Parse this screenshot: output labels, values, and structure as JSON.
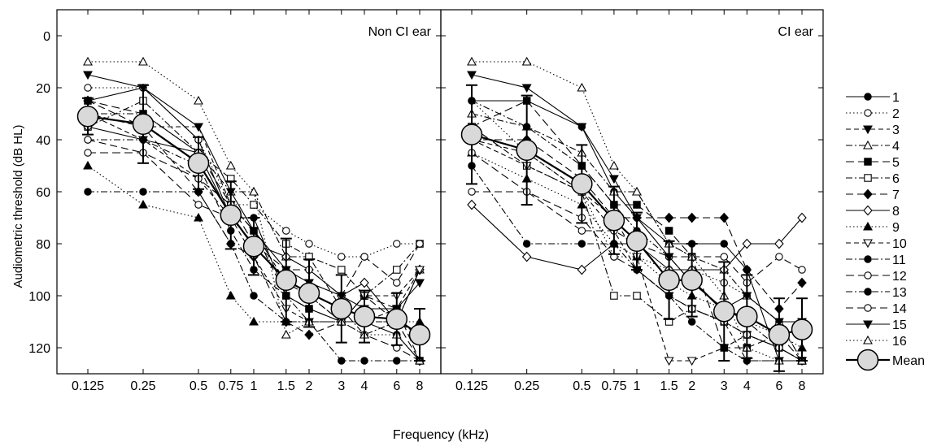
{
  "chart_data": {
    "type": "line",
    "xlabel": "Frequency (kHz)",
    "ylabel": "Audiometric threshold (dB HL)",
    "x": [
      0.125,
      0.25,
      0.5,
      0.75,
      1,
      1.5,
      2,
      3,
      4,
      6,
      8
    ],
    "x_tick_labels": [
      "0.125",
      "0.25",
      "0.5",
      "0.75",
      "1",
      "1.5",
      "2",
      "3",
      "4",
      "6",
      "8"
    ],
    "x_scale": "log",
    "y_ticks": [
      0,
      20,
      40,
      60,
      80,
      100,
      120
    ],
    "ylim": [
      -10,
      130
    ],
    "y_inverted": true,
    "grid": false,
    "legend_position": "right",
    "panels": [
      {
        "title": "Non CI ear",
        "series": [
          {
            "name": "1",
            "values": [
              25,
              20,
              40,
              70,
              70,
              100,
              105,
              110,
              110,
              115,
              125
            ]
          },
          {
            "name": "2",
            "values": [
              20,
              20,
              40,
              65,
              65,
              75,
              80,
              85,
              85,
              80,
              80
            ]
          },
          {
            "name": "3",
            "values": [
              30,
              35,
              35,
              65,
              75,
              95,
              100,
              110,
              110,
              105,
              90
            ]
          },
          {
            "name": "4",
            "values": [
              30,
              30,
              45,
              60,
              60,
              85,
              85,
              105,
              115,
              110,
              90
            ]
          },
          {
            "name": "5",
            "values": [
              25,
              30,
              45,
              65,
              75,
              100,
              105,
              110,
              100,
              105,
              125
            ]
          },
          {
            "name": "6",
            "values": [
              35,
              25,
              45,
              55,
              65,
              80,
              85,
              90,
              100,
              90,
              80
            ]
          },
          {
            "name": "7",
            "values": [
              25,
              35,
              60,
              80,
              85,
              110,
              115,
              110,
              100,
              110,
              125
            ]
          },
          {
            "name": "8",
            "values": [
              35,
              40,
              45,
              70,
              80,
              85,
              90,
              100,
              95,
              110,
              90
            ]
          },
          {
            "name": "9",
            "values": [
              50,
              65,
              70,
              100,
              110,
              110,
              110,
              110,
              110,
              110,
              110
            ]
          },
          {
            "name": "10",
            "values": [
              30,
              40,
              55,
              70,
              85,
              105,
              110,
              110,
              100,
              100,
              90
            ]
          },
          {
            "name": "11",
            "values": [
              40,
              40,
              50,
              75,
              90,
              100,
              110,
              110,
              110,
              110,
              115
            ]
          },
          {
            "name": "12",
            "values": [
              45,
              45,
              55,
              65,
              80,
              95,
              100,
              110,
              115,
              120,
              125
            ]
          },
          {
            "name": "13",
            "values": [
              60,
              60,
              60,
              80,
              100,
              110,
              110,
              125,
              125,
              125,
              125
            ]
          },
          {
            "name": "14",
            "values": [
              40,
              45,
              65,
              70,
              80,
              90,
              90,
              100,
              85,
              95,
              80
            ]
          },
          {
            "name": "15",
            "values": [
              15,
              20,
              35,
              60,
              75,
              90,
              95,
              100,
              105,
              105,
              95
            ]
          },
          {
            "name": "16",
            "values": [
              10,
              10,
              25,
              50,
              60,
              115,
              110,
              110,
              115,
              115,
              125
            ]
          }
        ],
        "mean": [
          31,
          34,
          49,
          69,
          81,
          94,
          99,
          105,
          108,
          109,
          115
        ],
        "mean_error": [
          7,
          15,
          10,
          13,
          11,
          16,
          13,
          13,
          10,
          10,
          10
        ]
      },
      {
        "title": "CI ear",
        "series": [
          {
            "name": "1",
            "values": [
              25,
              25,
              35,
              60,
              70,
              80,
              80,
              80,
              90,
              125,
              125
            ]
          },
          {
            "name": "2",
            "values": [
              25,
              45,
              60,
              85,
              85,
              90,
              90,
              95,
              100,
              110,
              125
            ]
          },
          {
            "name": "3",
            "values": [
              40,
              45,
              60,
              75,
              90,
              100,
              105,
              110,
              125,
              125,
              125
            ]
          },
          {
            "name": "4",
            "values": [
              30,
              35,
              45,
              60,
              60,
              80,
              85,
              90,
              100,
              110,
              125
            ]
          },
          {
            "name": "5",
            "values": [
              35,
              25,
              50,
              65,
              65,
              75,
              85,
              120,
              120,
              115,
              125
            ]
          },
          {
            "name": "6",
            "values": [
              35,
              50,
              60,
              100,
              100,
              110,
              105,
              110,
              115,
              120,
              125
            ]
          },
          {
            "name": "7",
            "values": [
              40,
              40,
              55,
              70,
              70,
              70,
              70,
              70,
              90,
              105,
              95
            ]
          },
          {
            "name": "8",
            "values": [
              65,
              85,
              90,
              80,
              80,
              90,
              90,
              90,
              80,
              80,
              70
            ]
          },
          {
            "name": "9",
            "values": [
              45,
              55,
              65,
              80,
              85,
              95,
              100,
              105,
              110,
              115,
              120
            ]
          },
          {
            "name": "10",
            "values": [
              40,
              50,
              60,
              70,
              85,
              125,
              125,
              120,
              115,
              120,
              125
            ]
          },
          {
            "name": "11",
            "values": [
              25,
              35,
              50,
              65,
              75,
              85,
              95,
              105,
              110,
              120,
              125
            ]
          },
          {
            "name": "12",
            "values": [
              45,
              60,
              70,
              85,
              90,
              100,
              105,
              110,
              115,
              120,
              125
            ]
          },
          {
            "name": "13",
            "values": [
              50,
              80,
              80,
              80,
              90,
              100,
              110,
              120,
              125,
              125,
              125
            ]
          },
          {
            "name": "14",
            "values": [
              60,
              60,
              75,
              75,
              80,
              85,
              85,
              85,
              95,
              85,
              90
            ]
          },
          {
            "name": "15",
            "values": [
              15,
              20,
              35,
              55,
              70,
              85,
              95,
              105,
              100,
              110,
              110
            ]
          },
          {
            "name": "16",
            "values": [
              10,
              10,
              20,
              50,
              60,
              80,
              85,
              100,
              120,
              125,
              125
            ]
          }
        ],
        "mean": [
          38,
          44,
          57,
          71,
          79,
          94,
          94,
          106,
          108,
          115,
          113
        ],
        "mean_error": [
          19,
          21,
          15,
          13,
          11,
          15,
          14,
          19,
          16,
          14,
          12
        ]
      }
    ],
    "legend": {
      "series": [
        "1",
        "2",
        "3",
        "4",
        "5",
        "6",
        "7",
        "8",
        "9",
        "10",
        "11",
        "12",
        "13",
        "14",
        "15",
        "16"
      ],
      "mean_label": "Mean"
    },
    "styles": [
      {
        "dash": "",
        "marker": "circle",
        "fill": "#000000"
      },
      {
        "dash": "1.5,3",
        "marker": "circle",
        "fill": "#ffffff"
      },
      {
        "dash": "6,4",
        "marker": "tri-down",
        "fill": "#000000"
      },
      {
        "dash": "8,3,2,3",
        "marker": "tri-up",
        "fill": "#ffffff"
      },
      {
        "dash": "10,5",
        "marker": "square",
        "fill": "#000000"
      },
      {
        "dash": "8,3,2,3",
        "marker": "square",
        "fill": "#ffffff"
      },
      {
        "dash": "9,5",
        "marker": "diamond",
        "fill": "#000000"
      },
      {
        "dash": "",
        "marker": "diamond",
        "fill": "#ffffff"
      },
      {
        "dash": "1.5,3",
        "marker": "tri-up",
        "fill": "#000000"
      },
      {
        "dash": "6,4",
        "marker": "tri-down",
        "fill": "#ffffff"
      },
      {
        "dash": "8,3,2,3",
        "marker": "circle",
        "fill": "#000000"
      },
      {
        "dash": "10,5",
        "marker": "circle",
        "fill": "#ffffff"
      },
      {
        "dash": "8,3,2,3",
        "marker": "circle",
        "fill": "#000000"
      },
      {
        "dash": "9,5",
        "marker": "circle",
        "fill": "#ffffff"
      },
      {
        "dash": "",
        "marker": "tri-down",
        "fill": "#000000"
      },
      {
        "dash": "1.5,3",
        "marker": "tri-up",
        "fill": "#ffffff"
      }
    ],
    "mean_fill": "#d9d9d9"
  }
}
